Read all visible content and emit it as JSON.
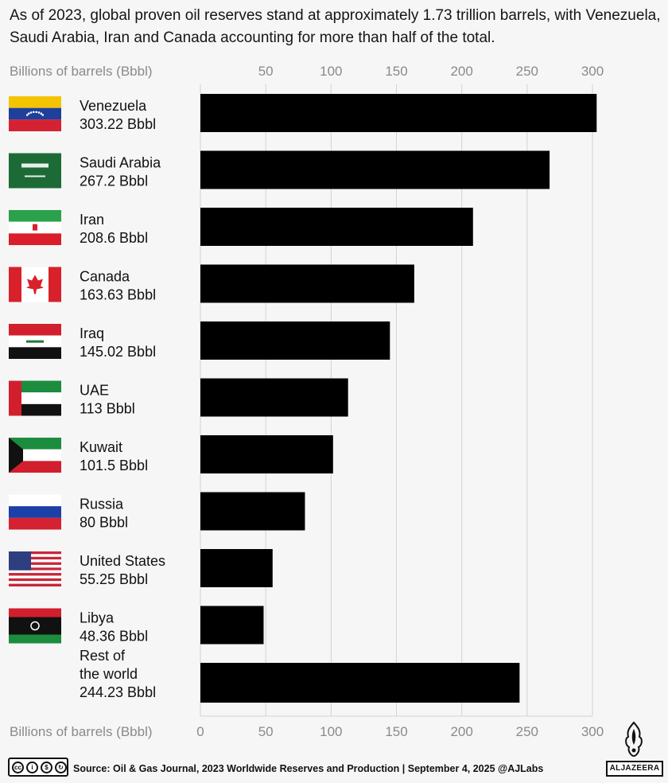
{
  "chart_data": {
    "type": "bar",
    "orientation": "horizontal",
    "subtitle": "As of 2023, global proven oil reserves stand at approximately 1.73 trillion barrels, with Venezuela, Saudi Arabia, Iran and Canada accounting for more than half of the total.",
    "xlabel": "Billions of barrels (Bbbl)",
    "xlim": [
      0,
      300
    ],
    "ticks": [
      0,
      50,
      100,
      150,
      200,
      250,
      300
    ],
    "grid": true,
    "categories": [
      {
        "name": "Venezuela",
        "label": "303.22 Bbbl",
        "flag": "venezuela-flag"
      },
      {
        "name": "Saudi Arabia",
        "label": "267.2 Bbbl",
        "flag": "saudi-arabia-flag"
      },
      {
        "name": "Iran",
        "label": "208.6 Bbbl",
        "flag": "iran-flag"
      },
      {
        "name": "Canada",
        "label": "163.63 Bbbl",
        "flag": "canada-flag"
      },
      {
        "name": "Iraq",
        "label": "145.02 Bbbl",
        "flag": "iraq-flag"
      },
      {
        "name": "UAE",
        "label": "113 Bbbl",
        "flag": "uae-flag"
      },
      {
        "name": "Kuwait",
        "label": "101.5 Bbbl",
        "flag": "kuwait-flag"
      },
      {
        "name": "Russia",
        "label": "80 Bbbl",
        "flag": "russia-flag"
      },
      {
        "name": "United States",
        "label": "55.25 Bbbl",
        "flag": "usa-flag"
      },
      {
        "name": "Libya",
        "label": "48.36 Bbbl",
        "flag": "libya-flag"
      },
      {
        "name": "Rest of the world",
        "label": "244.23 Bbbl",
        "flag": null
      }
    ],
    "values": [
      303.22,
      267.2,
      208.6,
      163.63,
      145.02,
      113,
      101.5,
      80,
      55.25,
      48.36,
      244.23
    ],
    "bar_color": "#000000"
  },
  "footer": {
    "license": "cc-by-nc-sa",
    "source": "Source: Oil & Gas Journal, 2023 Worldwide Reserves and Production  |  September 4, 2025    @AJLabs",
    "brand": "ALJAZEERA"
  }
}
